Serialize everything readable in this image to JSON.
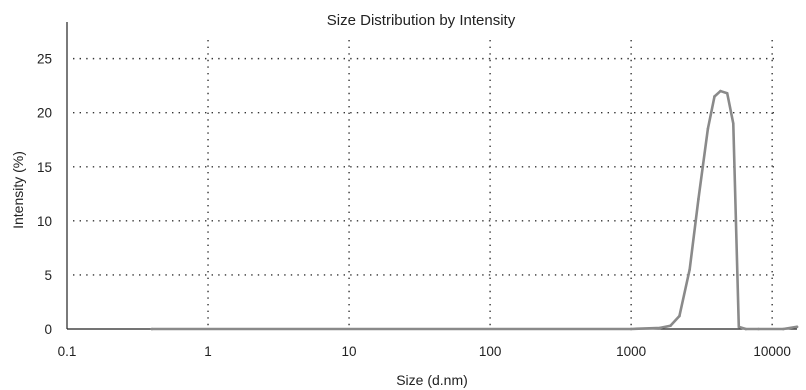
{
  "chart_data": {
    "type": "line",
    "title": "Size Distribution by Intensity",
    "xlabel": "Size (d.nm)",
    "ylabel": "Intensity (%)",
    "xscale": "log",
    "xlim": [
      0.1,
      15000
    ],
    "ylim": [
      0,
      27
    ],
    "grid": "dotted",
    "x_ticks": [
      {
        "value": 0.1,
        "label": "0.1"
      },
      {
        "value": 1,
        "label": "1"
      },
      {
        "value": 10,
        "label": "10"
      },
      {
        "value": 100,
        "label": "100"
      },
      {
        "value": 1000,
        "label": "1000"
      },
      {
        "value": 10000,
        "label": "10000"
      }
    ],
    "y_ticks": [
      {
        "value": 0,
        "label": "0"
      },
      {
        "value": 5,
        "label": "5"
      },
      {
        "value": 10,
        "label": "10"
      },
      {
        "value": 15,
        "label": "15"
      },
      {
        "value": 20,
        "label": "20"
      },
      {
        "value": 25,
        "label": "25"
      }
    ],
    "series": [
      {
        "color": "#8a8a8a",
        "x": [
          0.4,
          1000,
          1600,
          1900,
          2200,
          2600,
          3000,
          3500,
          3900,
          4300,
          4800,
          5300,
          5800,
          6500,
          8000,
          12000,
          15000
        ],
        "y": [
          0,
          0,
          0.1,
          0.3,
          1.2,
          5.5,
          12,
          18.5,
          21.5,
          22,
          21.8,
          19,
          0.2,
          0,
          0,
          0,
          0.2
        ]
      }
    ]
  }
}
